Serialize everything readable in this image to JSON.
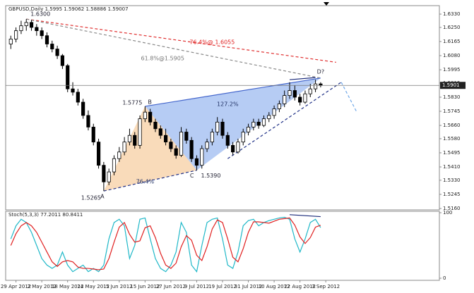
{
  "chart_data": [
    {
      "type": "candlestick",
      "title": "GBPUSD,Daily 1.5995 1.59062 1.58886 1.59007",
      "up_color": "#ffffff",
      "down_color": "#000000",
      "xlim": [
        -1,
        83
      ],
      "ylim": [
        1.5143,
        1.6381
      ],
      "yticks": [
        {
          "value": 1.633,
          "label": "1.6330"
        },
        {
          "value": 1.625,
          "label": "1.6250"
        },
        {
          "value": 1.6165,
          "label": "1.6165"
        },
        {
          "value": 1.608,
          "label": "1.6080"
        },
        {
          "value": 1.5995,
          "label": "1.5995"
        },
        {
          "value": 1.5915,
          "label": "1.5915"
        },
        {
          "value": 1.583,
          "label": "1.5830"
        },
        {
          "value": 1.5745,
          "label": "1.5745"
        },
        {
          "value": 1.566,
          "label": "1.5660"
        },
        {
          "value": 1.558,
          "label": "1.5580"
        },
        {
          "value": 1.5495,
          "label": "1.5495"
        },
        {
          "value": 1.541,
          "label": "1.5410"
        },
        {
          "value": 1.533,
          "label": "1.5330"
        },
        {
          "value": 1.5245,
          "label": "1.5245"
        },
        {
          "value": 1.516,
          "label": "1.5160"
        }
      ],
      "last_price": {
        "value": 1.5901,
        "label": "1.5901"
      },
      "ohlc": [
        [
          1.615,
          1.62,
          1.612,
          1.618
        ],
        [
          1.618,
          1.625,
          1.616,
          1.623
        ],
        [
          1.623,
          1.629,
          1.621,
          1.626
        ],
        [
          1.626,
          1.63,
          1.623,
          1.628
        ],
        [
          1.628,
          1.6295,
          1.623,
          1.625
        ],
        [
          1.625,
          1.627,
          1.62,
          1.623
        ],
        [
          1.623,
          1.625,
          1.618,
          1.62
        ],
        [
          1.62,
          1.622,
          1.613,
          1.615
        ],
        [
          1.615,
          1.617,
          1.61,
          1.612
        ],
        [
          1.612,
          1.614,
          1.606,
          1.608
        ],
        [
          1.608,
          1.609,
          1.6,
          1.602
        ],
        [
          1.602,
          1.603,
          1.586,
          1.588
        ],
        [
          1.588,
          1.592,
          1.584,
          1.586
        ],
        [
          1.586,
          1.588,
          1.578,
          1.58
        ],
        [
          1.58,
          1.582,
          1.57,
          1.572
        ],
        [
          1.572,
          1.575,
          1.563,
          1.565
        ],
        [
          1.565,
          1.567,
          1.554,
          1.556
        ],
        [
          1.556,
          1.558,
          1.54,
          1.542
        ],
        [
          1.542,
          1.544,
          1.5265,
          1.532
        ],
        [
          1.532,
          1.54,
          1.53,
          1.538
        ],
        [
          1.538,
          1.548,
          1.536,
          1.546
        ],
        [
          1.546,
          1.553,
          1.544,
          1.55
        ],
        [
          1.55,
          1.559,
          1.548,
          1.556
        ],
        [
          1.556,
          1.564,
          1.554,
          1.56
        ],
        [
          1.56,
          1.562,
          1.552,
          1.554
        ],
        [
          1.554,
          1.572,
          1.552,
          1.57
        ],
        [
          1.57,
          1.5775,
          1.568,
          1.574
        ],
        [
          1.574,
          1.576,
          1.566,
          1.568
        ],
        [
          1.568,
          1.57,
          1.562,
          1.564
        ],
        [
          1.564,
          1.566,
          1.558,
          1.56
        ],
        [
          1.56,
          1.564,
          1.554,
          1.556
        ],
        [
          1.556,
          1.558,
          1.55,
          1.552
        ],
        [
          1.552,
          1.554,
          1.546,
          1.548
        ],
        [
          1.548,
          1.565,
          1.547,
          1.562
        ],
        [
          1.562,
          1.564,
          1.555,
          1.557
        ],
        [
          1.557,
          1.559,
          1.544,
          1.546
        ],
        [
          1.546,
          1.548,
          1.539,
          1.542
        ],
        [
          1.542,
          1.554,
          1.54,
          1.552
        ],
        [
          1.552,
          1.558,
          1.55,
          1.556
        ],
        [
          1.556,
          1.564,
          1.554,
          1.562
        ],
        [
          1.562,
          1.571,
          1.56,
          1.568
        ],
        [
          1.568,
          1.57,
          1.558,
          1.56
        ],
        [
          1.56,
          1.562,
          1.552,
          1.554
        ],
        [
          1.554,
          1.556,
          1.548,
          1.55
        ],
        [
          1.55,
          1.558,
          1.549,
          1.556
        ],
        [
          1.556,
          1.564,
          1.554,
          1.562
        ],
        [
          1.562,
          1.567,
          1.56,
          1.565
        ],
        [
          1.565,
          1.57,
          1.563,
          1.568
        ],
        [
          1.568,
          1.57,
          1.564,
          1.566
        ],
        [
          1.566,
          1.572,
          1.565,
          1.57
        ],
        [
          1.57,
          1.574,
          1.568,
          1.572
        ],
        [
          1.572,
          1.578,
          1.57,
          1.576
        ],
        [
          1.576,
          1.581,
          1.574,
          1.579
        ],
        [
          1.579,
          1.587,
          1.577,
          1.584
        ],
        [
          1.584,
          1.592,
          1.582,
          1.587
        ],
        [
          1.587,
          1.59,
          1.581,
          1.583
        ],
        [
          1.583,
          1.585,
          1.578,
          1.58
        ],
        [
          1.58,
          1.587,
          1.579,
          1.585
        ],
        [
          1.585,
          1.591,
          1.583,
          1.588
        ],
        [
          1.588,
          1.5935,
          1.586,
          1.591
        ],
        [
          1.591,
          1.592,
          1.5889,
          1.5901
        ]
      ],
      "pattern_points": [
        {
          "price_label": "1.6300",
          "x": 3,
          "y": 1.63
        },
        {
          "label": "A",
          "price_label": "1.5265",
          "x": 18,
          "y": 1.5265
        },
        {
          "label": "B",
          "price_label": "1.5775",
          "x": 26,
          "y": 1.5775
        },
        {
          "label": "C",
          "price_label": "1.5390",
          "x": 36,
          "y": 1.539
        },
        {
          "label": "D?",
          "x": 60,
          "y": 1.5945
        }
      ],
      "lines": [
        {
          "points": [
            [
              3,
              1.63
            ],
            [
              63,
              1.604
            ]
          ],
          "color": "#e03030",
          "dash": true
        },
        {
          "points": [
            [
              3,
              1.63
            ],
            [
              60,
              1.5945
            ]
          ],
          "color": "#888888",
          "dash": true
        },
        {
          "points": [
            [
              18,
              1.5265
            ],
            [
              36,
              1.539
            ]
          ],
          "color": "#223388",
          "dash": true
        },
        {
          "points": [
            [
              42,
              1.546
            ],
            [
              64,
              1.592
            ]
          ],
          "color": "#223388",
          "dash": true
        },
        {
          "points": [
            [
              26,
              1.5775
            ],
            [
              60,
              1.5945
            ]
          ],
          "color": "#4466cc",
          "dash": false
        },
        {
          "points": [
            [
              54,
              1.5935
            ],
            [
              59,
              1.5948
            ]
          ],
          "color": "#1a2a7a",
          "dash": false
        },
        {
          "points": [
            [
              64,
              1.592
            ],
            [
              67,
              1.574
            ]
          ],
          "color": "#6fa8e8",
          "dash": true
        }
      ],
      "annotations": [
        {
          "text": "76.4%@ 1.6055",
          "x": 39,
          "y": 1.6161,
          "color": "#e02020"
        },
        {
          "text": "61.8%@1.5905",
          "x": 29.4,
          "y": 1.6063,
          "color": "#777777"
        },
        {
          "text": "127.2%",
          "x": 42,
          "y": 1.5788,
          "color": "#223366"
        },
        {
          "text": "76.4%",
          "x": 26,
          "y": 1.5321,
          "color": "#223366"
        }
      ]
    },
    {
      "type": "line",
      "title": "Stoch(5,3,3) 77.2011 80.8411",
      "xlim": [
        -1,
        83
      ],
      "ylim": [
        0,
        100
      ],
      "yticks": [
        0,
        100
      ],
      "xticks": [
        {
          "value": 1,
          "label": "29 Apr 2012"
        },
        {
          "value": 6,
          "label": "2 May 2012"
        },
        {
          "value": 11,
          "label": "18 May 2012"
        },
        {
          "value": 16,
          "label": "24 May 2012"
        },
        {
          "value": 21,
          "label": "5 Jun 2012"
        },
        {
          "value": 26,
          "label": "15 Jun 2012"
        },
        {
          "value": 31,
          "label": "27 Jun 2012"
        },
        {
          "value": 36,
          "label": "9 Jul 2012"
        },
        {
          "value": 41,
          "label": "19 Jul 2012"
        },
        {
          "value": 46,
          "label": "31 Jul 2012"
        },
        {
          "value": 51,
          "label": "10 Aug 2012"
        },
        {
          "value": 56,
          "label": "22 Aug 2012"
        },
        {
          "value": 61,
          "label": "3 Sep 2012"
        }
      ],
      "series": [
        {
          "color": "#20b8c8",
          "values": [
            60,
            80,
            90,
            85,
            70,
            50,
            30,
            20,
            15,
            20,
            40,
            20,
            10,
            15,
            20,
            10,
            15,
            10,
            20,
            60,
            85,
            90,
            80,
            30,
            50,
            90,
            92,
            60,
            30,
            15,
            10,
            20,
            40,
            85,
            70,
            20,
            10,
            50,
            85,
            90,
            92,
            60,
            20,
            15,
            40,
            80,
            88,
            90,
            80,
            85,
            88,
            90,
            92,
            93,
            90,
            60,
            40,
            60,
            85,
            90,
            77.2011
          ]
        },
        {
          "color": "#e02020",
          "values": [
            50,
            68,
            80,
            85,
            80,
            70,
            55,
            40,
            25,
            18,
            25,
            27,
            25,
            17,
            15,
            15,
            14,
            13,
            14,
            30,
            55,
            78,
            85,
            67,
            55,
            57,
            77,
            80,
            62,
            38,
            20,
            15,
            23,
            48,
            65,
            58,
            35,
            27,
            48,
            75,
            89,
            85,
            60,
            32,
            25,
            45,
            70,
            86,
            86,
            85,
            84,
            87,
            90,
            91,
            92,
            81,
            63,
            53,
            62,
            78,
            80.8411
          ]
        }
      ],
      "lines": [
        {
          "points": [
            [
              54,
              97
            ],
            [
              60,
              94
            ]
          ],
          "color": "#1a2a7a",
          "dash": false
        }
      ]
    }
  ]
}
